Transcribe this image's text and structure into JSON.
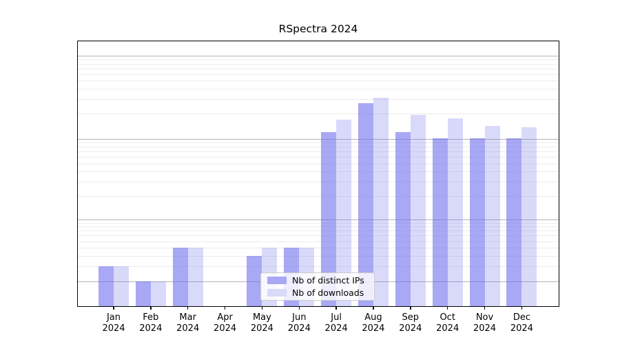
{
  "chart_data": {
    "type": "bar",
    "title": "RSpectra 2024",
    "categories": [
      "Jan 2024",
      "Feb 2024",
      "Mar 2024",
      "Apr 2024",
      "May 2024",
      "Jun 2024",
      "Jul 2024",
      "Aug 2024",
      "Sep 2024",
      "Oct 2024",
      "Nov 2024",
      "Dec 2024"
    ],
    "series": [
      {
        "name": "Nb of distinct IPs",
        "base_color": "#6666eb",
        "alpha": 0.57,
        "legend_color": "#a8a8f4",
        "values": [
          2,
          1,
          4,
          0,
          3,
          4,
          120,
          268,
          121,
          101,
          102,
          102
        ]
      },
      {
        "name": "Nb of downloads",
        "base_color": "#6666eb",
        "alpha": 0.25,
        "legend_color": "#d9d9fa",
        "values": [
          2,
          1,
          4,
          0,
          4,
          4,
          169,
          312,
          195,
          178,
          143,
          137
        ]
      }
    ],
    "yticks": [
      0,
      1,
      2,
      5,
      10,
      20,
      50,
      100,
      200,
      500,
      1000
    ],
    "scale": "log10(1+x)",
    "ylim": [
      0,
      1455
    ],
    "grid": "horizontal, minor 2-9 per decade, major at decades",
    "legend_position": "bottom-center",
    "colors": {
      "gridline_major": "#b4b4b4",
      "gridline_minor": "#ececec",
      "axis_frame": "#000000",
      "background": "#ffffff"
    }
  }
}
